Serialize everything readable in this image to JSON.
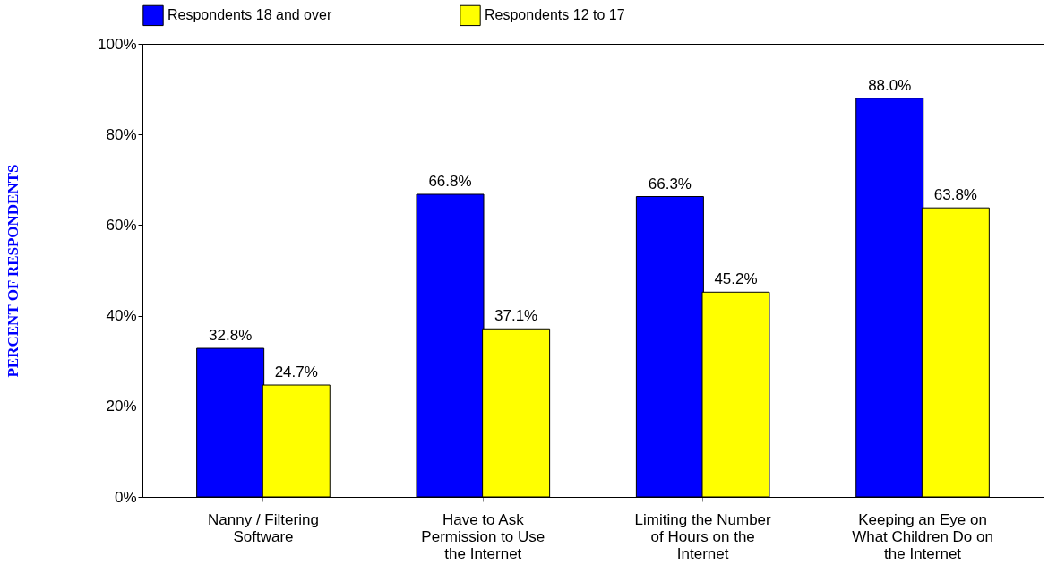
{
  "chart_data": {
    "type": "bar",
    "ylabel": "PERCENT OF RESPONDENTS",
    "categories": [
      "Nanny / Filtering Software",
      "Have to Ask Permission to Use the Internet",
      "Limiting the Number of Hours on the Internet",
      "Keeping an Eye on What Children Do on the Internet"
    ],
    "series": [
      {
        "name": "Respondents 18 and over",
        "color": "#0000ff",
        "values": [
          32.8,
          66.8,
          66.3,
          88.0
        ],
        "value_labels": [
          "32.8%",
          "66.8%",
          "66.3%",
          "88.0%"
        ]
      },
      {
        "name": "Respondents 12 to 17",
        "color": "#ffff00",
        "values": [
          24.7,
          37.1,
          45.2,
          63.8
        ],
        "value_labels": [
          "24.7%",
          "37.1%",
          "45.2%",
          "63.8%"
        ]
      }
    ],
    "ylim": [
      0,
      100
    ],
    "yticks": [
      {
        "value": 0,
        "label": "0%"
      },
      {
        "value": 20,
        "label": "20%"
      },
      {
        "value": 40,
        "label": "40%"
      },
      {
        "value": 60,
        "label": "60%"
      },
      {
        "value": 80,
        "label": "80%"
      },
      {
        "value": 100,
        "label": "100%"
      }
    ],
    "grid": false,
    "legend": "top"
  }
}
